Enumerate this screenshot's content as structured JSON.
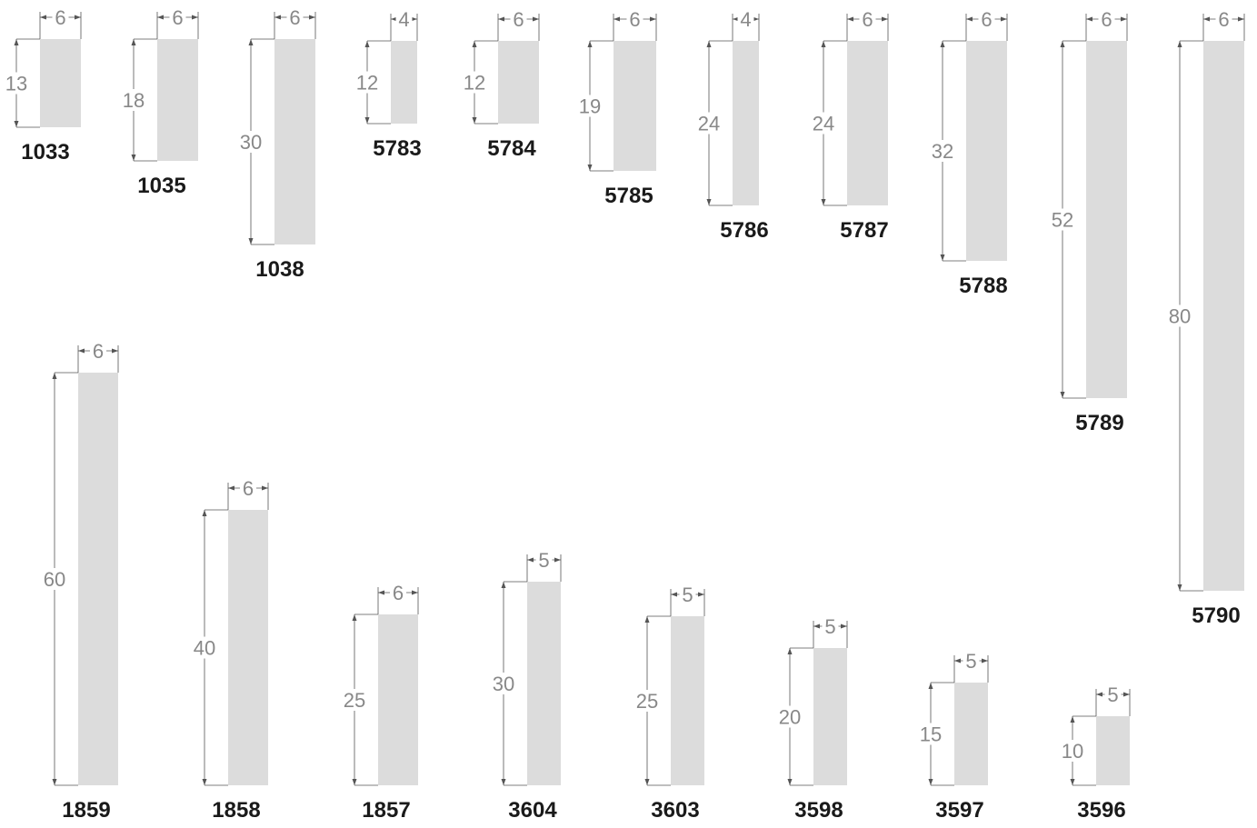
{
  "profiles": [
    {
      "code": "1033",
      "height": "13",
      "width": "6"
    },
    {
      "code": "1035",
      "height": "18",
      "width": "6"
    },
    {
      "code": "1038",
      "height": "30",
      "width": "6"
    },
    {
      "code": "5783",
      "height": "12",
      "width": "4"
    },
    {
      "code": "5784",
      "height": "12",
      "width": "6"
    },
    {
      "code": "5785",
      "height": "19",
      "width": "6"
    },
    {
      "code": "5786",
      "height": "24",
      "width": "4"
    },
    {
      "code": "5787",
      "height": "24",
      "width": "6"
    },
    {
      "code": "5788",
      "height": "32",
      "width": "6"
    },
    {
      "code": "5789",
      "height": "52",
      "width": "6"
    },
    {
      "code": "5790",
      "height": "80",
      "width": "6"
    },
    {
      "code": "1859",
      "height": "60",
      "width": "6"
    },
    {
      "code": "1858",
      "height": "40",
      "width": "6"
    },
    {
      "code": "1857",
      "height": "25",
      "width": "6"
    },
    {
      "code": "3604",
      "height": "30",
      "width": "5"
    },
    {
      "code": "3603",
      "height": "25",
      "width": "5"
    },
    {
      "code": "3598",
      "height": "20",
      "width": "5"
    },
    {
      "code": "3597",
      "height": "15",
      "width": "5"
    },
    {
      "code": "3596",
      "height": "10",
      "width": "5"
    }
  ]
}
